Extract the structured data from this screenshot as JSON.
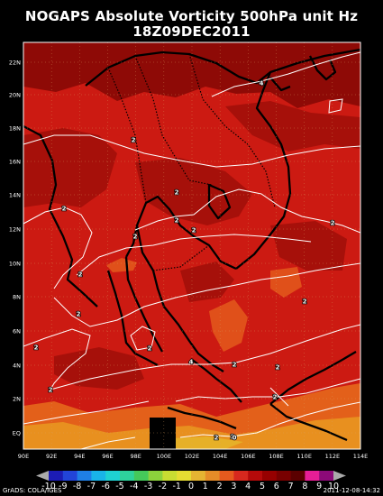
{
  "title_line1": "NOGAPS Absolute Vorticity 500hPa unit Hz",
  "title_line2": "18Z09DEC2011",
  "lat_labels": [
    "22N",
    "20N",
    "18N",
    "16N",
    "14N",
    "12N",
    "10N",
    "8N",
    "6N",
    "4N",
    "2N",
    "EQ"
  ],
  "lon_labels": [
    "90E",
    "92E",
    "94E",
    "96E",
    "98E",
    "100E",
    "102E",
    "104E",
    "106E",
    "108E",
    "110E",
    "112E",
    "114E"
  ],
  "contour_labels": [
    "4",
    "2",
    "2",
    "2",
    "2",
    "2",
    "2",
    "2",
    "2",
    "2",
    "2",
    "4",
    "2",
    "2",
    "2",
    "2",
    "2",
    "2",
    "2",
    "2",
    "0"
  ],
  "colorbar": {
    "labels": [
      "-10",
      "-9",
      "-8",
      "-7",
      "-6",
      "-5",
      "-4",
      "-3",
      "-2",
      "-1",
      "0",
      "1",
      "2",
      "3",
      "4",
      "5",
      "6",
      "7",
      "8",
      "9",
      "10"
    ],
    "colors": [
      "#1c1cb4",
      "#2244d8",
      "#1f7fe6",
      "#19b4e8",
      "#1ed2d2",
      "#2ed29c",
      "#45c85a",
      "#8cd23c",
      "#c8dc32",
      "#e6dc32",
      "#e6b432",
      "#e68c28",
      "#e65a1e",
      "#d7281e",
      "#b40a0a",
      "#960000",
      "#780000",
      "#5a0000",
      "#e61e96",
      "#8c0a78"
    ]
  },
  "footer_left": "GrADS: COLA/IGES",
  "footer_right": "2011-12-08-14:32"
}
